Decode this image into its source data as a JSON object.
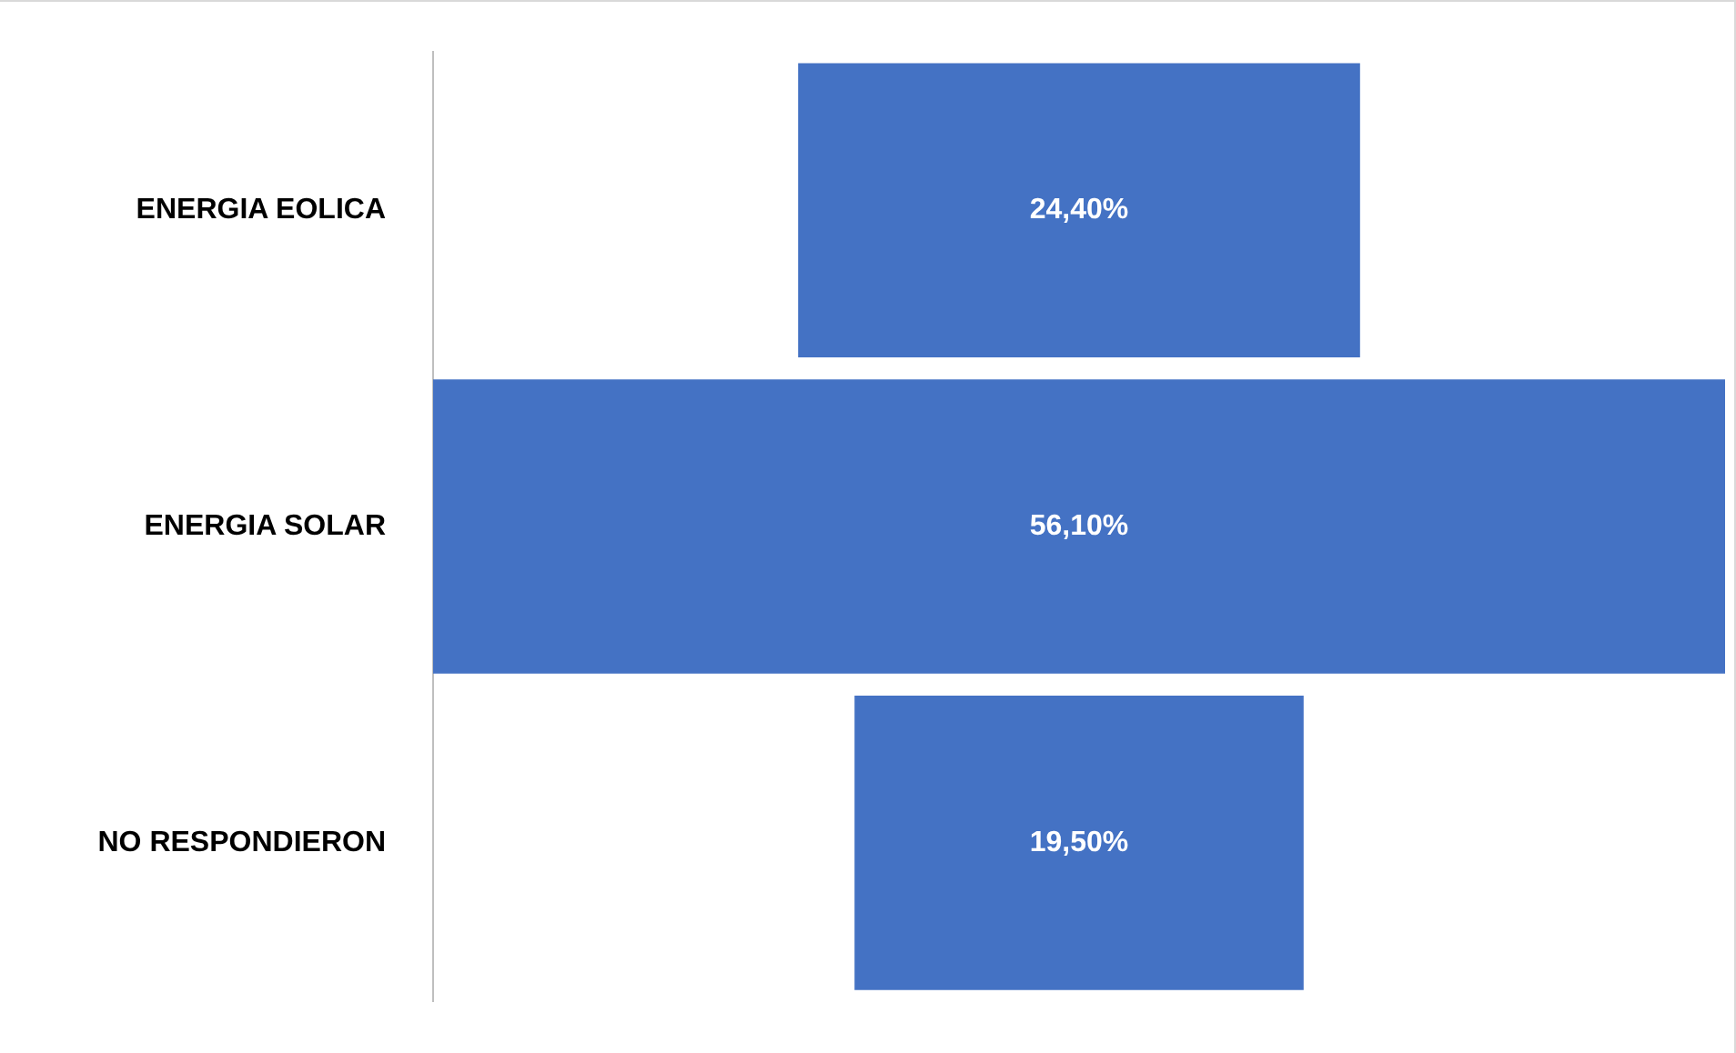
{
  "chart_data": {
    "type": "other",
    "categories": [
      "ENERGIA EOLICA",
      "ENERGIA SOLAR",
      "NO RESPONDIERON"
    ],
    "values": [
      24.4,
      56.1,
      19.5
    ],
    "value_labels": [
      "24,40%",
      "56,10%",
      "19,50%"
    ],
    "color": "#4472c4"
  }
}
